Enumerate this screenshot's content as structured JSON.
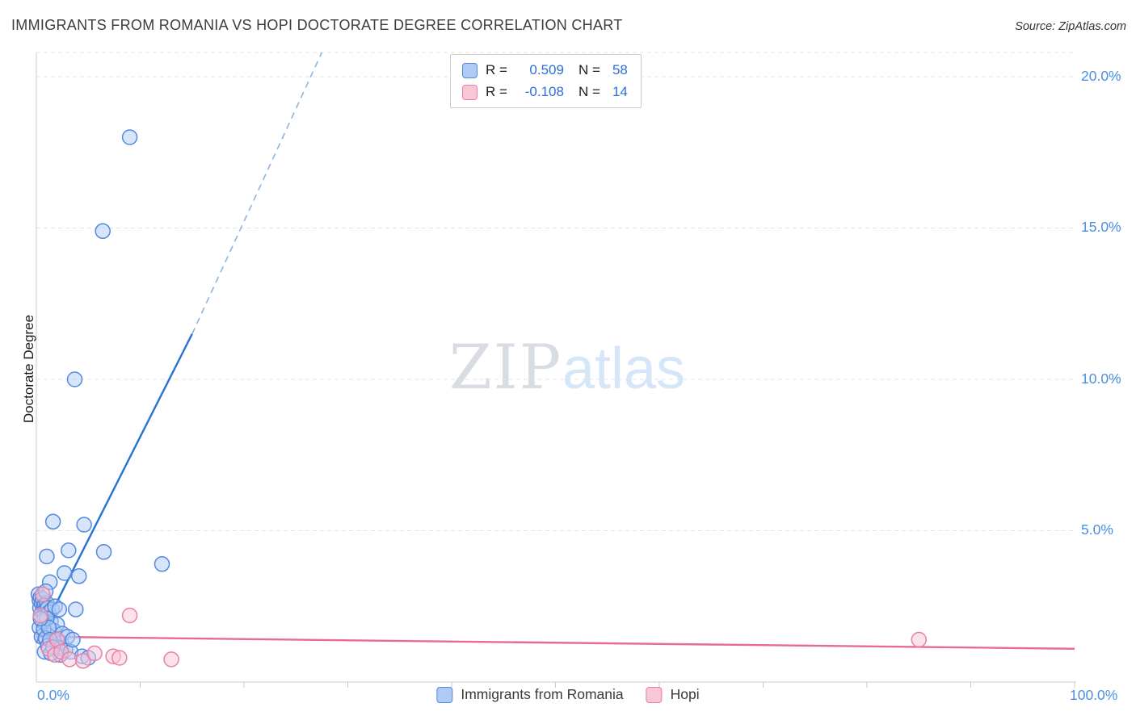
{
  "chart": {
    "title": "IMMIGRANTS FROM ROMANIA VS HOPI DOCTORATE DEGREE CORRELATION CHART",
    "source": "Source: ZipAtlas.com",
    "y_axis_title": "Doctorate Degree",
    "watermark_zip": "ZIP",
    "watermark_atlas": "atlas"
  },
  "colors": {
    "axis_label_blue": "#4a90e2",
    "legend_value_blue": "#2e6fd9",
    "romania_fill": "#aecbf5",
    "romania_stroke": "#5588dd",
    "romania_trend": "#2472d8",
    "romania_trend_dash": "#8fb4d9",
    "hopi_fill": "#f9c6d8",
    "hopi_stroke": "#e87fa8",
    "hopi_trend": "#e76a96",
    "gridline": "#e3e3e3",
    "axis_line": "#c9c9c9"
  },
  "legend_box": {
    "rows": [
      {
        "r_label": "R =",
        "r_value": "0.509",
        "n_label": "N =",
        "n_value": "58"
      },
      {
        "r_label": "R =",
        "r_value": "-0.108",
        "n_label": "N =",
        "n_value": "14"
      }
    ]
  },
  "bottom_legend": {
    "items": [
      {
        "label": "Immigrants from Romania"
      },
      {
        "label": "Hopi"
      }
    ]
  },
  "axis_labels": {
    "x_min": "0.0%",
    "x_max": "100.0%",
    "y_ticks": [
      "20.0%",
      "15.0%",
      "10.0%",
      "5.0%"
    ]
  },
  "chart_data": {
    "type": "scatter",
    "title": "Immigrants from Romania vs Hopi Doctorate Degree correlation",
    "xlabel": "Immigrants from Romania (%)",
    "ylabel": "Doctorate Degree (%)",
    "x_range": [
      0,
      100
    ],
    "y_range": [
      0,
      20.8
    ],
    "y_gridlines": [
      5,
      10,
      15,
      20
    ],
    "x_tick_step": 10,
    "grid": true,
    "legend_position": "top-center",
    "series": [
      {
        "name": "Immigrants from Romania",
        "R": 0.509,
        "N": 58,
        "fill": "#aecbf5",
        "stroke": "#5588dd",
        "point_name": "romania-data-point",
        "points": [
          [
            0.2,
            2.9
          ],
          [
            0.3,
            2.7
          ],
          [
            0.35,
            2.45
          ],
          [
            0.4,
            2.8
          ],
          [
            0.5,
            2.6
          ],
          [
            0.55,
            2.3
          ],
          [
            0.6,
            2.75
          ],
          [
            0.7,
            2.5
          ],
          [
            0.75,
            2.2
          ],
          [
            0.8,
            2.55
          ],
          [
            0.9,
            2.4
          ],
          [
            1.0,
            2.6
          ],
          [
            1.1,
            2.45
          ],
          [
            1.2,
            2.3
          ],
          [
            1.3,
            3.3
          ],
          [
            1.4,
            2.0
          ],
          [
            1.5,
            2.4
          ],
          [
            1.6,
            5.3
          ],
          [
            1.7,
            1.7
          ],
          [
            1.8,
            2.5
          ],
          [
            1.9,
            1.35
          ],
          [
            2.0,
            1.9
          ],
          [
            2.1,
            1.1
          ],
          [
            2.2,
            2.4
          ],
          [
            2.3,
            0.9
          ],
          [
            2.4,
            1.3
          ],
          [
            2.5,
            1.6
          ],
          [
            2.7,
            3.6
          ],
          [
            2.8,
            1.05
          ],
          [
            3.0,
            1.5
          ],
          [
            3.1,
            4.35
          ],
          [
            3.3,
            1.0
          ],
          [
            3.5,
            1.4
          ],
          [
            3.7,
            10.0
          ],
          [
            3.8,
            2.4
          ],
          [
            4.1,
            3.5
          ],
          [
            4.4,
            0.85
          ],
          [
            4.6,
            5.2
          ],
          [
            5.0,
            0.8
          ],
          [
            6.4,
            14.9
          ],
          [
            6.5,
            4.3
          ],
          [
            9.0,
            18.0
          ],
          [
            12.1,
            3.9
          ],
          [
            1.0,
            4.15
          ],
          [
            0.3,
            1.8
          ],
          [
            0.5,
            1.5
          ],
          [
            0.6,
            2.0
          ],
          [
            0.7,
            1.75
          ],
          [
            0.8,
            1.0
          ],
          [
            0.9,
            1.45
          ],
          [
            1.0,
            2.1
          ],
          [
            1.1,
            1.2
          ],
          [
            1.2,
            1.8
          ],
          [
            1.3,
            1.4
          ],
          [
            1.4,
            0.95
          ],
          [
            1.6,
            1.15
          ],
          [
            0.4,
            2.1
          ],
          [
            0.9,
            3.0
          ]
        ]
      },
      {
        "name": "Hopi",
        "R": -0.108,
        "N": 14,
        "fill": "#f9c6d8",
        "stroke": "#e87fa8",
        "point_name": "hopi-data-point",
        "points": [
          [
            0.6,
            2.9
          ],
          [
            0.4,
            2.2
          ],
          [
            1.2,
            1.1
          ],
          [
            1.8,
            0.9
          ],
          [
            2.0,
            1.4
          ],
          [
            2.4,
            1.0
          ],
          [
            3.2,
            0.75
          ],
          [
            4.5,
            0.7
          ],
          [
            5.6,
            0.95
          ],
          [
            7.4,
            0.85
          ],
          [
            8.0,
            0.8
          ],
          [
            9.0,
            2.2
          ],
          [
            13.0,
            0.75
          ],
          [
            85.0,
            1.4
          ]
        ]
      }
    ],
    "trend_lines": [
      {
        "series": "Immigrants from Romania",
        "color": "#2472d8",
        "dash_color": "#8fb4d9",
        "solid": [
          [
            0,
            1.3
          ],
          [
            15,
            11.5
          ]
        ],
        "dashed": [
          [
            15,
            11.5
          ],
          [
            27.5,
            20.8
          ]
        ]
      },
      {
        "series": "Hopi",
        "color": "#e76a96",
        "solid": [
          [
            0,
            1.5
          ],
          [
            100,
            1.1
          ]
        ]
      }
    ]
  }
}
